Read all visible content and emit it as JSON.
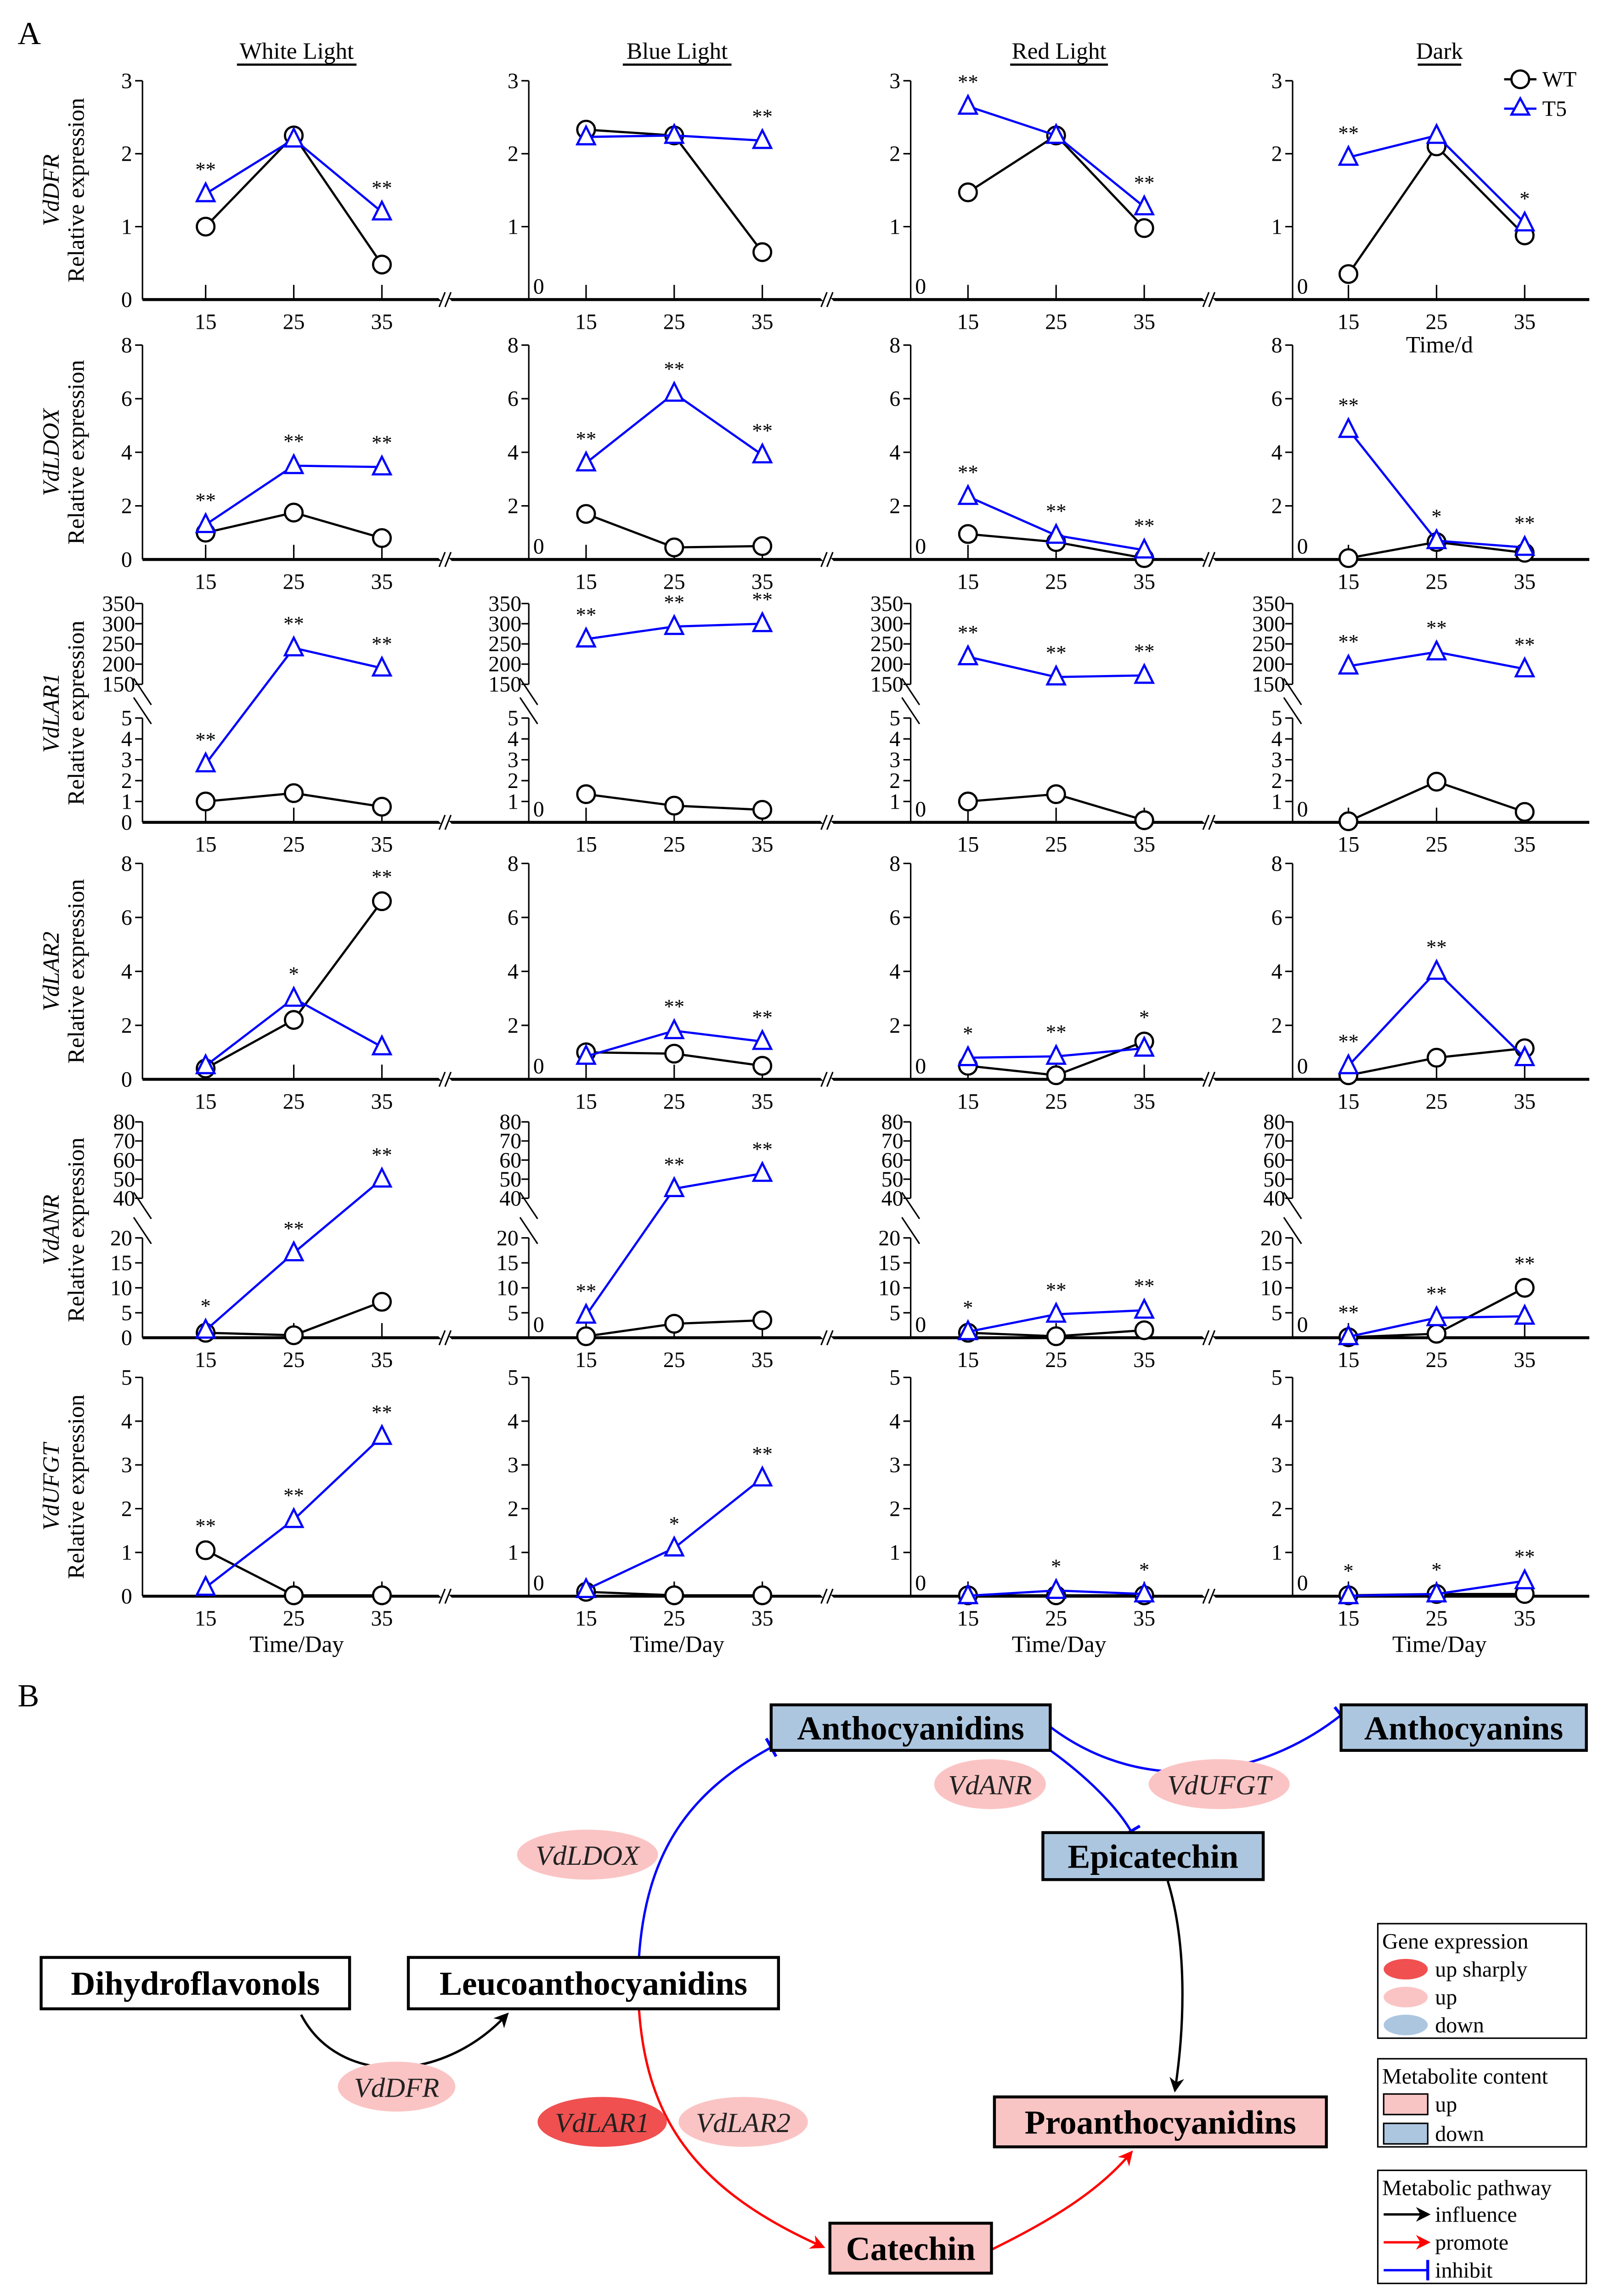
{
  "panel_labels": {
    "a": "A",
    "b": "B"
  },
  "colors": {
    "wt": "#000000",
    "t5": "#0000ff",
    "box_up": "#f8c4c4",
    "box_down": "#adc6e0",
    "ell_up": "#fbc4c4",
    "ell_up_sharply": "#f05050",
    "promote": "#ff0000",
    "inhibit": "#0000ff",
    "influence": "#000000"
  },
  "legend": {
    "wt": "WT",
    "t5": "T5"
  },
  "time_d_label": "Time/d",
  "xlabel": "Time/Day",
  "chart_data": {
    "type": "line",
    "conditions": [
      "White Light",
      "Blue Light",
      "Red Light",
      "Dark"
    ],
    "x": [
      "15",
      "25",
      "35"
    ],
    "ylabel": "Relative expression",
    "genes": [
      {
        "name": "VdDFR",
        "yticks": [
          "0",
          "1",
          "2",
          "3"
        ],
        "ytick_values": [
          0,
          1,
          2,
          3
        ],
        "ylim": [
          0,
          3
        ],
        "panels": [
          {
            "wt": [
              1.0,
              2.25,
              0.48
            ],
            "t5": [
              1.45,
              2.2,
              1.2
            ],
            "sig": [
              "**",
              "",
              "**"
            ]
          },
          {
            "wt": [
              2.33,
              2.25,
              0.65
            ],
            "t5": [
              2.23,
              2.25,
              2.18
            ],
            "sig": [
              "",
              "",
              "**"
            ]
          },
          {
            "wt": [
              1.47,
              2.25,
              0.98
            ],
            "t5": [
              2.65,
              2.25,
              1.27
            ],
            "sig": [
              "**",
              "",
              "**"
            ]
          },
          {
            "wt": [
              0.35,
              2.1,
              0.88
            ],
            "t5": [
              1.95,
              2.25,
              1.05
            ],
            "sig": [
              "**",
              "",
              "*"
            ]
          }
        ]
      },
      {
        "name": "VdLDOX",
        "yticks": [
          "0",
          "2",
          "4",
          "6",
          "8"
        ],
        "ytick_values": [
          0,
          2,
          4,
          6,
          8
        ],
        "ylim": [
          0,
          8
        ],
        "panels": [
          {
            "wt": [
              1.0,
              1.75,
              0.8
            ],
            "t5": [
              1.3,
              3.5,
              3.45
            ],
            "sig": [
              "**",
              "**",
              "**"
            ]
          },
          {
            "wt": [
              1.7,
              0.45,
              0.5
            ],
            "t5": [
              3.6,
              6.2,
              3.9
            ],
            "sig": [
              "**",
              "**",
              "**"
            ]
          },
          {
            "wt": [
              0.95,
              0.65,
              0.05
            ],
            "t5": [
              2.35,
              0.9,
              0.35
            ],
            "sig": [
              "**",
              "**",
              "**"
            ]
          },
          {
            "wt": [
              0.05,
              0.65,
              0.25
            ],
            "t5": [
              4.85,
              0.7,
              0.45
            ],
            "sig": [
              "**",
              "*",
              "**"
            ]
          }
        ]
      },
      {
        "name": "VdLAR1",
        "broken": true,
        "yticks": [
          "0",
          "1",
          "2",
          "3",
          "4",
          "5"
        ],
        "ytick_values": [
          0,
          1,
          2,
          3,
          4,
          5
        ],
        "ylim": [
          0,
          5
        ],
        "upper_yticks": [
          "150",
          "200",
          "250",
          "300",
          "350"
        ],
        "upper_ytick_values": [
          150,
          200,
          250,
          300,
          350
        ],
        "upper_ylim": [
          150,
          350
        ],
        "panels": [
          {
            "wt": [
              1.0,
              1.4,
              0.75
            ],
            "t5": [
              2.8,
              240,
              190
            ],
            "sig": [
              "**",
              "**",
              "**"
            ]
          },
          {
            "wt": [
              1.35,
              0.8,
              0.6
            ],
            "t5": [
              262,
              293,
              300
            ],
            "sig": [
              "**",
              "**",
              "**"
            ]
          },
          {
            "wt": [
              1.0,
              1.35,
              0.1
            ],
            "t5": [
              218,
              168,
              172
            ],
            "sig": [
              "**",
              "**",
              "**"
            ]
          },
          {
            "wt": [
              0.05,
              1.95,
              0.5
            ],
            "t5": [
              195,
              230,
              188
            ],
            "sig": [
              "**",
              "**",
              "**"
            ]
          }
        ]
      },
      {
        "name": "VdLAR2",
        "yticks": [
          "0",
          "2",
          "4",
          "6",
          "8"
        ],
        "ytick_values": [
          0,
          2,
          4,
          6,
          8
        ],
        "ylim": [
          0,
          8
        ],
        "panels": [
          {
            "wt": [
              0.4,
              2.2,
              6.6
            ],
            "t5": [
              0.5,
              3.0,
              1.2
            ],
            "sig": [
              "",
              "*",
              "**"
            ]
          },
          {
            "wt": [
              1.0,
              0.95,
              0.5
            ],
            "t5": [
              0.85,
              1.8,
              1.4
            ],
            "sig": [
              "",
              "**",
              "**"
            ]
          },
          {
            "wt": [
              0.5,
              0.15,
              1.4
            ],
            "t5": [
              0.8,
              0.85,
              1.15
            ],
            "sig": [
              "*",
              "**",
              "*"
            ]
          },
          {
            "wt": [
              0.15,
              0.8,
              1.15
            ],
            "t5": [
              0.5,
              4.0,
              0.8
            ],
            "sig": [
              "**",
              "**",
              ""
            ]
          }
        ]
      },
      {
        "name": "VdANR",
        "broken": true,
        "yticks": [
          "0",
          "5",
          "10",
          "15",
          "20"
        ],
        "ytick_values": [
          0,
          5,
          10,
          15,
          20
        ],
        "ylim": [
          0,
          20
        ],
        "upper_yticks": [
          "40",
          "50",
          "60",
          "70",
          "80"
        ],
        "upper_ytick_values": [
          40,
          50,
          60,
          70,
          80
        ],
        "upper_ylim": [
          40,
          80
        ],
        "panels": [
          {
            "wt": [
              1.0,
              0.5,
              7.2
            ],
            "t5": [
              1.5,
              17,
              50
            ],
            "sig": [
              "*",
              "**",
              "**"
            ]
          },
          {
            "wt": [
              0.3,
              2.8,
              3.5
            ],
            "t5": [
              4.5,
              45,
              53
            ],
            "sig": [
              "**",
              "**",
              "**"
            ]
          },
          {
            "wt": [
              1.0,
              0.3,
              1.5
            ],
            "t5": [
              1.2,
              4.7,
              5.5
            ],
            "sig": [
              "*",
              "**",
              "**"
            ]
          },
          {
            "wt": [
              0.1,
              0.8,
              10.0
            ],
            "t5": [
              0.2,
              4.0,
              4.3
            ],
            "sig": [
              "**",
              "**",
              "**"
            ]
          }
        ]
      },
      {
        "name": "VdUFGT",
        "yticks": [
          "0",
          "1",
          "2",
          "3",
          "4",
          "5"
        ],
        "ytick_values": [
          0,
          1,
          2,
          3,
          4,
          5
        ],
        "ylim": [
          0,
          5
        ],
        "panels": [
          {
            "wt": [
              1.05,
              0.02,
              0.02
            ],
            "t5": [
              0.2,
              1.75,
              3.65
            ],
            "sig": [
              "**",
              "**",
              "**"
            ]
          },
          {
            "wt": [
              0.1,
              0.02,
              0.02
            ],
            "t5": [
              0.15,
              1.1,
              2.7
            ],
            "sig": [
              "",
              "*",
              "**"
            ]
          },
          {
            "wt": [
              0.02,
              0.02,
              0.02
            ],
            "t5": [
              0.01,
              0.13,
              0.05
            ],
            "sig": [
              "",
              "*",
              "*"
            ]
          },
          {
            "wt": [
              0.02,
              0.05,
              0.05
            ],
            "t5": [
              0.01,
              0.05,
              0.35
            ],
            "sig": [
              "*",
              "*",
              "**"
            ]
          }
        ]
      }
    ]
  },
  "pathway": {
    "metabolites": [
      {
        "id": "anthocyanidins",
        "label": "Anthocyanidins",
        "status": "down"
      },
      {
        "id": "anthocyanins",
        "label": "Anthocyanins",
        "status": "down"
      },
      {
        "id": "epicatechin",
        "label": "Epicatechin",
        "status": "down"
      },
      {
        "id": "dihydroflavonols",
        "label": "Dihydroflavonols",
        "status": "none"
      },
      {
        "id": "leucoanthocyanidins",
        "label": "Leucoanthocyanidins",
        "status": "none"
      },
      {
        "id": "proanthocyanidins",
        "label": "Proanthocyanidins",
        "status": "up"
      },
      {
        "id": "catechin",
        "label": "Catechin",
        "status": "up"
      }
    ],
    "genes": [
      {
        "label": "VdANR",
        "status": "up"
      },
      {
        "label": "VdUFGT",
        "status": "up"
      },
      {
        "label": "VdLDOX",
        "status": "up"
      },
      {
        "label": "VdDFR",
        "status": "up"
      },
      {
        "label": "VdLAR1",
        "status": "up sharply"
      },
      {
        "label": "VdLAR2",
        "status": "up"
      }
    ],
    "legend": {
      "gene_title": "Gene expression",
      "gene_items": [
        "up sharply",
        "up",
        "down"
      ],
      "metab_title": "Metabolite content",
      "metab_items": [
        "up",
        "down"
      ],
      "path_title": "Metabolic pathway",
      "path_items": [
        "influence",
        "promote",
        "inhibit"
      ]
    }
  }
}
